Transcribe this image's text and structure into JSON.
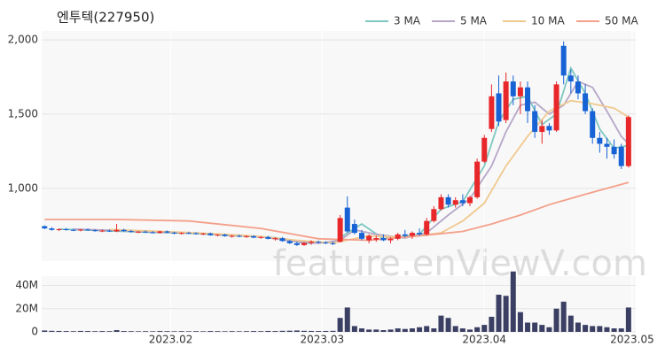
{
  "chart_data": {
    "type": "candlestick",
    "title": "엔투텍(227950)",
    "watermark": "feature.enViewV.com",
    "up_color": "#e8272a",
    "down_color": "#1763d6",
    "xlim": [
      -0.4,
      82
    ],
    "xticks": [
      {
        "value": 17.5,
        "label": "2023.02"
      },
      {
        "value": 38.5,
        "label": "2023.03"
      },
      {
        "value": 61,
        "label": "2023.04"
      },
      {
        "value": 81.5,
        "label": "2023.05"
      }
    ],
    "ylim": [
      510,
      2060
    ],
    "yticks": [
      {
        "value": 1000,
        "label": "1,000"
      },
      {
        "value": 1500,
        "label": "1,500"
      },
      {
        "value": 2000,
        "label": "2,000"
      }
    ],
    "candles": [
      [
        745,
        750,
        725,
        730
      ],
      [
        730,
        738,
        715,
        720
      ],
      [
        720,
        730,
        712,
        725
      ],
      [
        725,
        732,
        715,
        720
      ],
      [
        720,
        728,
        712,
        718
      ],
      [
        718,
        726,
        710,
        722
      ],
      [
        722,
        730,
        715,
        718
      ],
      [
        718,
        725,
        708,
        712
      ],
      [
        712,
        722,
        705,
        715
      ],
      [
        715,
        722,
        706,
        710
      ],
      [
        710,
        760,
        705,
        720
      ],
      [
        720,
        728,
        708,
        712
      ],
      [
        712,
        720,
        702,
        706
      ],
      [
        706,
        714,
        698,
        708
      ],
      [
        708,
        716,
        700,
        704
      ],
      [
        704,
        712,
        696,
        700
      ],
      [
        700,
        715,
        695,
        710
      ],
      [
        710,
        716,
        698,
        702
      ],
      [
        702,
        708,
        690,
        695
      ],
      [
        695,
        704,
        688,
        700
      ],
      [
        700,
        708,
        692,
        698
      ],
      [
        698,
        704,
        688,
        692
      ],
      [
        692,
        700,
        684,
        696
      ],
      [
        696,
        702,
        680,
        684
      ],
      [
        684,
        692,
        676,
        688
      ],
      [
        688,
        694,
        674,
        678
      ],
      [
        678,
        686,
        668,
        680
      ],
      [
        680,
        688,
        670,
        674
      ],
      [
        674,
        684,
        666,
        678
      ],
      [
        678,
        684,
        664,
        668
      ],
      [
        668,
        678,
        660,
        672
      ],
      [
        672,
        680,
        656,
        660
      ],
      [
        660,
        670,
        648,
        664
      ],
      [
        664,
        672,
        640,
        645
      ],
      [
        645,
        652,
        625,
        630
      ],
      [
        630,
        640,
        612,
        618
      ],
      [
        618,
        638,
        612,
        632
      ],
      [
        632,
        650,
        620,
        640
      ],
      [
        640,
        648,
        628,
        636
      ],
      [
        636,
        644,
        624,
        630
      ],
      [
        630,
        640,
        618,
        626
      ],
      [
        640,
        820,
        635,
        800
      ],
      [
        870,
        946,
        700,
        710
      ],
      [
        760,
        790,
        690,
        700
      ],
      [
        700,
        720,
        650,
        660
      ],
      [
        650,
        690,
        630,
        680
      ],
      [
        655,
        680,
        640,
        665
      ],
      [
        665,
        690,
        645,
        650
      ],
      [
        650,
        670,
        630,
        660
      ],
      [
        660,
        700,
        650,
        690
      ],
      [
        690,
        720,
        670,
        680
      ],
      [
        680,
        710,
        660,
        700
      ],
      [
        700,
        730,
        680,
        690
      ],
      [
        690,
        800,
        680,
        780
      ],
      [
        780,
        880,
        770,
        860
      ],
      [
        860,
        960,
        850,
        940
      ],
      [
        940,
        960,
        870,
        890
      ],
      [
        890,
        940,
        870,
        920
      ],
      [
        920,
        960,
        880,
        900
      ],
      [
        900,
        950,
        880,
        940
      ],
      [
        940,
        1200,
        930,
        1180
      ],
      [
        1180,
        1360,
        1170,
        1340
      ],
      [
        1400,
        1700,
        1380,
        1620
      ],
      [
        1640,
        1760,
        1420,
        1450
      ],
      [
        1460,
        1780,
        1440,
        1720
      ],
      [
        1720,
        1760,
        1560,
        1620
      ],
      [
        1620,
        1720,
        1500,
        1680
      ],
      [
        1680,
        1720,
        1440,
        1520
      ],
      [
        1520,
        1560,
        1340,
        1380
      ],
      [
        1380,
        1460,
        1300,
        1420
      ],
      [
        1420,
        1440,
        1360,
        1390
      ],
      [
        1390,
        1720,
        1380,
        1700
      ],
      [
        1960,
        1990,
        1700,
        1760
      ],
      [
        1760,
        1800,
        1640,
        1720
      ],
      [
        1720,
        1760,
        1600,
        1640
      ],
      [
        1640,
        1700,
        1500,
        1520
      ],
      [
        1520,
        1540,
        1300,
        1340
      ],
      [
        1340,
        1380,
        1240,
        1300
      ],
      [
        1300,
        1340,
        1200,
        1280
      ],
      [
        1280,
        1330,
        1200,
        1230
      ],
      [
        1280,
        1300,
        1130,
        1150
      ],
      [
        1150,
        1490,
        1140,
        1480
      ]
    ],
    "ma": [
      {
        "name": "3 MA",
        "color": "#7ec8c1",
        "x": [
          2,
          8,
          14,
          20,
          26,
          32,
          36,
          40,
          42,
          44,
          47,
          52,
          55,
          58,
          61,
          63,
          65,
          67,
          69,
          71,
          73,
          75,
          77,
          79,
          81
        ],
        "values": [
          725,
          715,
          705,
          698,
          682,
          668,
          630,
          635,
          700,
          760,
          660,
          690,
          860,
          910,
          1150,
          1450,
          1600,
          1620,
          1430,
          1500,
          1810,
          1640,
          1400,
          1270,
          1290
        ]
      },
      {
        "name": "5 MA",
        "color": "#b6a6c8",
        "x": [
          4,
          10,
          15,
          20,
          25,
          30,
          35,
          38,
          41,
          43,
          46,
          50,
          53,
          56,
          59,
          62,
          64,
          66,
          68,
          70,
          72,
          74,
          76,
          78,
          80,
          81
        ],
        "values": [
          725,
          716,
          706,
          700,
          688,
          674,
          640,
          630,
          650,
          720,
          690,
          665,
          700,
          820,
          930,
          1150,
          1380,
          1560,
          1580,
          1500,
          1560,
          1720,
          1680,
          1520,
          1350,
          1300
        ]
      },
      {
        "name": "10 MA",
        "color": "#f0c98f",
        "x": [
          9,
          15,
          20,
          25,
          30,
          35,
          40,
          45,
          50,
          55,
          58,
          61,
          64,
          67,
          70,
          73,
          76,
          79,
          81
        ],
        "values": [
          722,
          712,
          702,
          690,
          675,
          650,
          632,
          680,
          670,
          700,
          780,
          900,
          1150,
          1350,
          1520,
          1590,
          1570,
          1540,
          1480
        ]
      },
      {
        "name": "50 MA",
        "color": "#f4a08a",
        "x": [
          0,
          10,
          20,
          30,
          38,
          45,
          52,
          58,
          62,
          66,
          70,
          75,
          81
        ],
        "values": [
          790,
          790,
          780,
          730,
          660,
          650,
          680,
          710,
          760,
          820,
          890,
          960,
          1040
        ]
      }
    ],
    "volume": {
      "color": "#3b3f63",
      "ylim": [
        0,
        48000000
      ],
      "yticks": [
        0,
        {
          "value": 20000000,
          "label": "20M"
        },
        {
          "value": 40000000,
          "label": "40M"
        }
      ],
      "values": [
        1200000,
        900000,
        800000,
        700000,
        600000,
        800000,
        700000,
        600000,
        700000,
        600000,
        1500000,
        700000,
        600000,
        500000,
        600000,
        500000,
        700000,
        600000,
        500000,
        600000,
        500000,
        600000,
        500000,
        700000,
        600000,
        500000,
        600000,
        500000,
        600000,
        700000,
        600000,
        800000,
        700000,
        900000,
        1000000,
        1200000,
        900000,
        800000,
        700000,
        800000,
        900000,
        12000000,
        21000000,
        5000000,
        3000000,
        2000000,
        2000000,
        1500000,
        2000000,
        3000000,
        2500000,
        3000000,
        4000000,
        5000000,
        3000000,
        14000000,
        12000000,
        5000000,
        3000000,
        2000000,
        4000000,
        6000000,
        13000000,
        32000000,
        31000000,
        52000000,
        17000000,
        8000000,
        8000000,
        6000000,
        4000000,
        20000000,
        26000000,
        14000000,
        8000000,
        6000000,
        5000000,
        5000000,
        4000000,
        3000000,
        3000000,
        21000000
      ]
    }
  }
}
